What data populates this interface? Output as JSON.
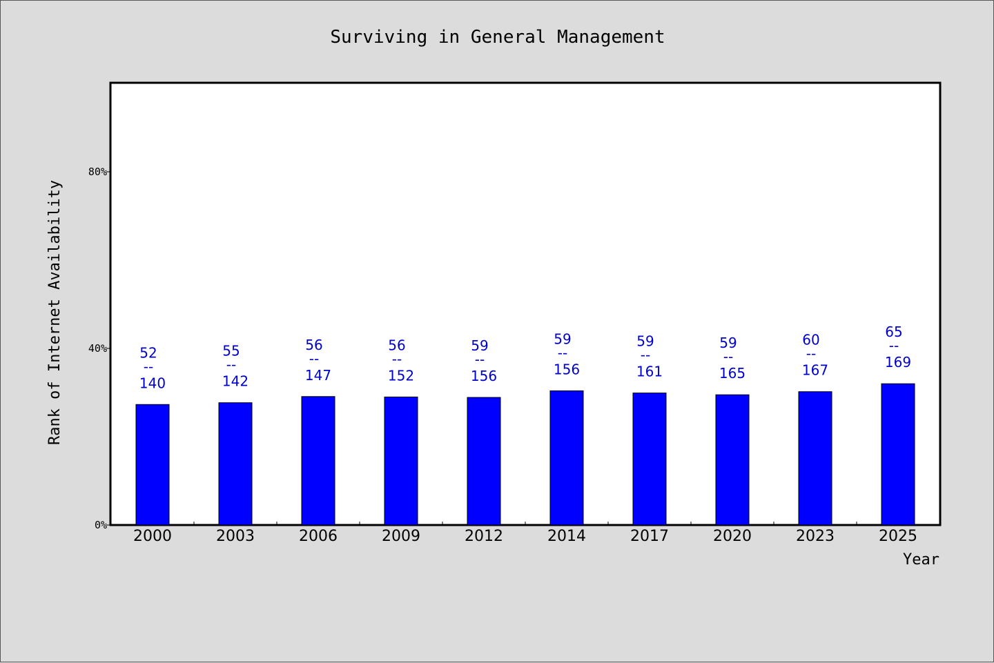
{
  "chart_data": {
    "type": "bar",
    "title": "Surviving in General Management",
    "xlabel": "Year",
    "ylabel": "Rank of Internet Availability",
    "categories": [
      "2000",
      "2003",
      "2006",
      "2009",
      "2012",
      "2014",
      "2017",
      "2020",
      "2023",
      "2025"
    ],
    "values": [
      27.3,
      27.7,
      29.1,
      29.0,
      28.9,
      30.4,
      29.9,
      29.5,
      30.2,
      32.0
    ],
    "numerators": [
      "52",
      "55",
      "56",
      "56",
      "59",
      "59",
      "59",
      "59",
      "60",
      "65"
    ],
    "denominators": [
      "140",
      "142",
      "147",
      "152",
      "156",
      "156",
      "161",
      "165",
      "167",
      "169"
    ],
    "label_separator": "--",
    "ylim": [
      0,
      100
    ],
    "yticks": [
      0,
      40,
      80
    ],
    "ytick_labels": [
      "0%",
      "40%",
      "80%"
    ],
    "grid": false,
    "legend": "none",
    "colors": {
      "bar": "#0000ff",
      "data_label": "#0000cc",
      "plot_background": "#ffffff",
      "page_background": "#dcdcdc"
    }
  }
}
